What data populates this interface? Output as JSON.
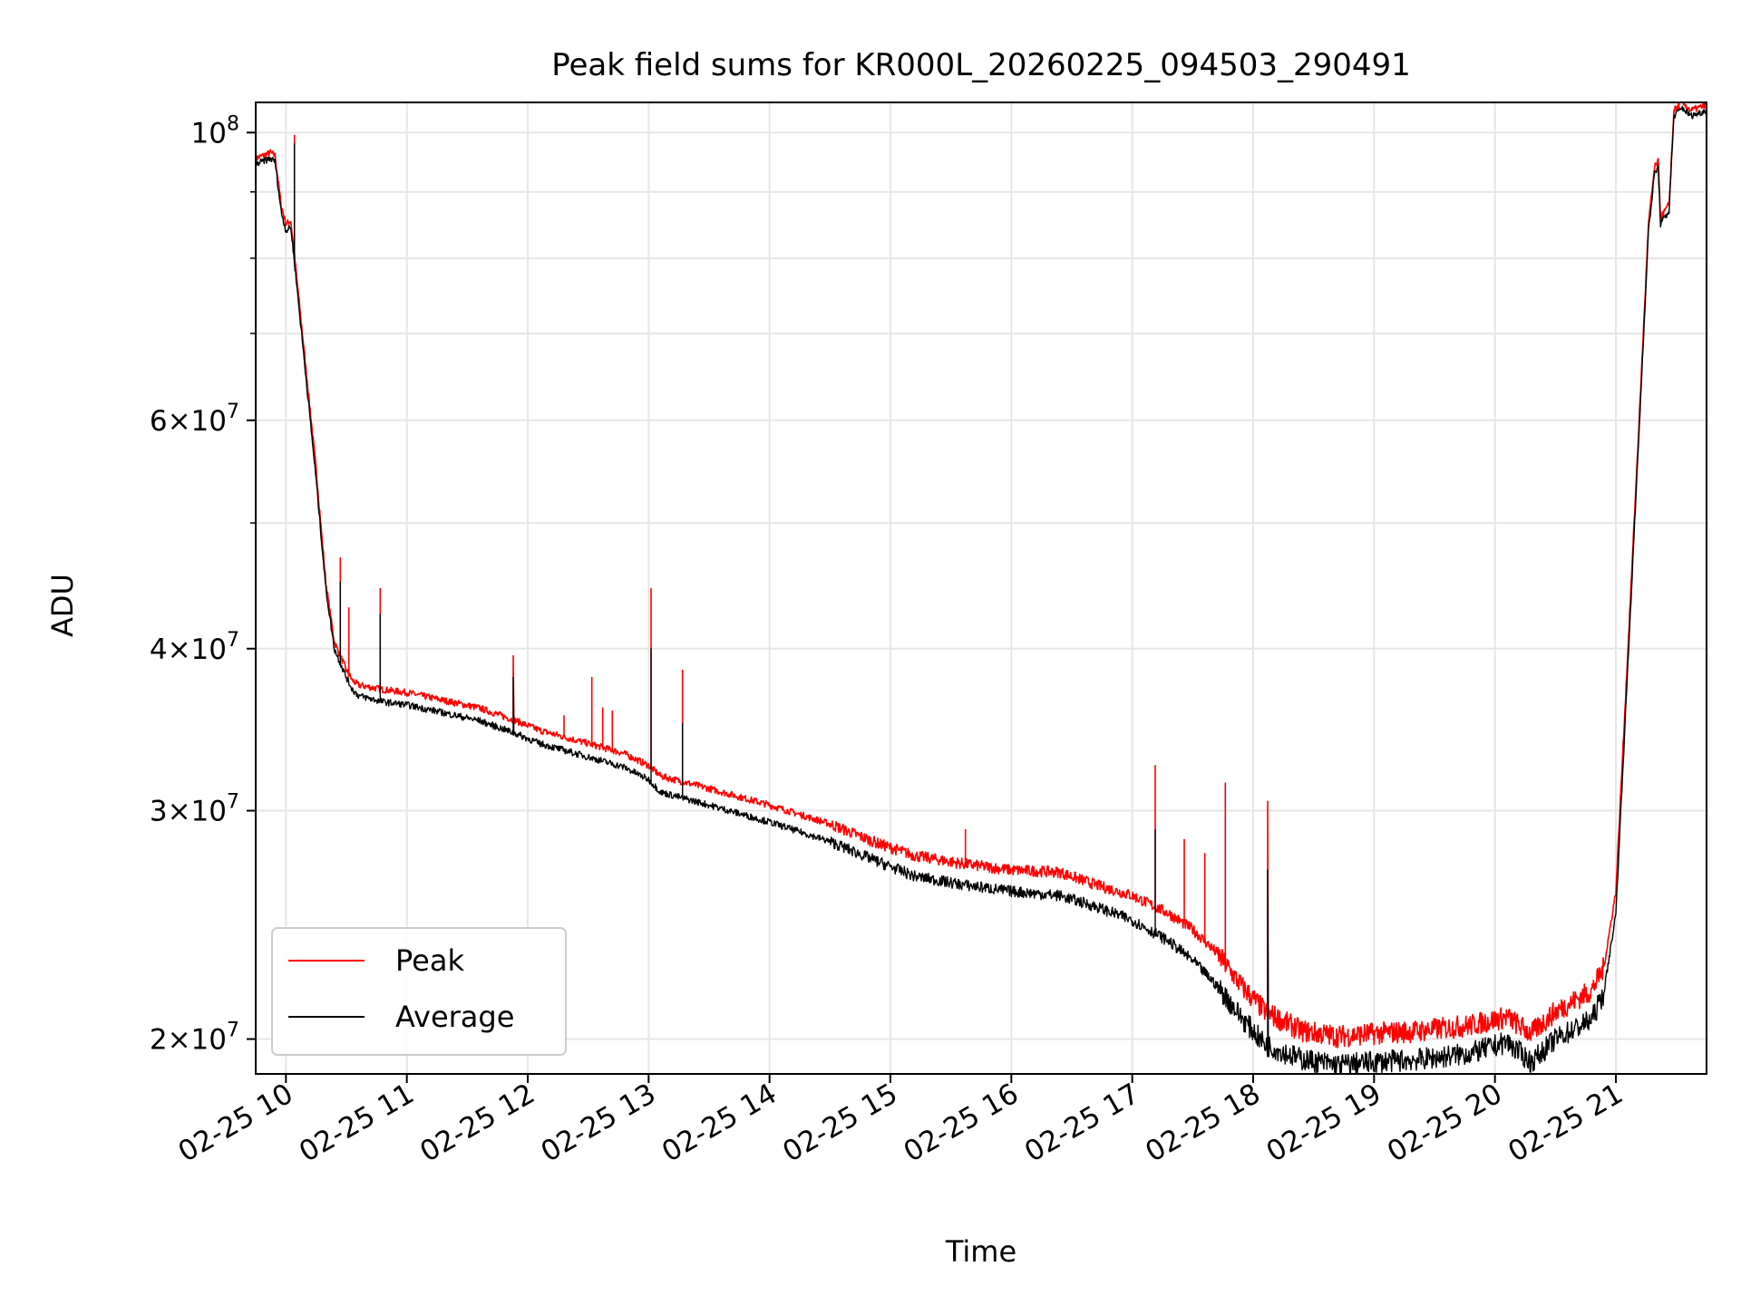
{
  "chart_data": {
    "type": "line",
    "title": "Peak field sums for KR000L_20260225_094503_290491",
    "xlabel": "Time",
    "ylabel": "ADU",
    "yscale": "log",
    "xlim_hours": [
      9.75,
      21.75
    ],
    "ylim": [
      18800000,
      105500000
    ],
    "grid": true,
    "legend_position": "lower-left",
    "x_ticks": [
      {
        "hour": 10,
        "label": "02-25 10"
      },
      {
        "hour": 11,
        "label": "02-25 11"
      },
      {
        "hour": 12,
        "label": "02-25 12"
      },
      {
        "hour": 13,
        "label": "02-25 13"
      },
      {
        "hour": 14,
        "label": "02-25 14"
      },
      {
        "hour": 15,
        "label": "02-25 15"
      },
      {
        "hour": 16,
        "label": "02-25 16"
      },
      {
        "hour": 17,
        "label": "02-25 17"
      },
      {
        "hour": 18,
        "label": "02-25 18"
      },
      {
        "hour": 19,
        "label": "02-25 19"
      },
      {
        "hour": 20,
        "label": "02-25 20"
      },
      {
        "hour": 21,
        "label": "02-25 21"
      }
    ],
    "y_ticks_major": [
      {
        "value": 100000000,
        "base": "10",
        "exp": "8"
      },
      {
        "value": 60000000,
        "mant": "6",
        "base": "10",
        "exp": "7"
      },
      {
        "value": 40000000,
        "mant": "4",
        "base": "10",
        "exp": "7"
      },
      {
        "value": 30000000,
        "mant": "3",
        "base": "10",
        "exp": "7"
      },
      {
        "value": 20000000,
        "mant": "2",
        "base": "10",
        "exp": "7"
      }
    ],
    "y_ticks_minor": [
      50000000,
      70000000,
      80000000,
      90000000
    ],
    "series": [
      {
        "name": "Peak",
        "color": "#ff0000",
        "points": [
          [
            9.75,
            95500000
          ],
          [
            9.87,
            96500000
          ],
          [
            9.91,
            96000000
          ],
          [
            9.96,
            88000000
          ],
          [
            10.0,
            85000000
          ],
          [
            10.04,
            85500000
          ],
          [
            10.07,
            80500000
          ],
          [
            10.15,
            68000000
          ],
          [
            10.25,
            55000000
          ],
          [
            10.33,
            45000000
          ],
          [
            10.4,
            40500000
          ],
          [
            10.5,
            38500000
          ],
          [
            10.55,
            37800000
          ],
          [
            10.6,
            37500000
          ],
          [
            10.8,
            37200000
          ],
          [
            11.0,
            37000000
          ],
          [
            11.3,
            36500000
          ],
          [
            11.6,
            36000000
          ],
          [
            11.9,
            35200000
          ],
          [
            12.1,
            34600000
          ],
          [
            12.5,
            33800000
          ],
          [
            12.8,
            33200000
          ],
          [
            13.0,
            32500000
          ],
          [
            13.1,
            31900000
          ],
          [
            13.5,
            31200000
          ],
          [
            14.0,
            30300000
          ],
          [
            14.5,
            29300000
          ],
          [
            14.9,
            28300000
          ],
          [
            15.2,
            27700000
          ],
          [
            15.6,
            27300000
          ],
          [
            16.0,
            27000000
          ],
          [
            16.4,
            26900000
          ],
          [
            16.7,
            26300000
          ],
          [
            17.0,
            25800000
          ],
          [
            17.3,
            25000000
          ],
          [
            17.5,
            24300000
          ],
          [
            17.7,
            23300000
          ],
          [
            17.9,
            22000000
          ],
          [
            18.1,
            21000000
          ],
          [
            18.4,
            20300000
          ],
          [
            18.7,
            20100000
          ],
          [
            19.0,
            20200000
          ],
          [
            19.4,
            20300000
          ],
          [
            19.8,
            20500000
          ],
          [
            20.1,
            20800000
          ],
          [
            20.3,
            20200000
          ],
          [
            20.5,
            21000000
          ],
          [
            20.8,
            21800000
          ],
          [
            20.9,
            22700000
          ],
          [
            21.0,
            26000000
          ],
          [
            21.1,
            40000000
          ],
          [
            21.2,
            62000000
          ],
          [
            21.27,
            85000000
          ],
          [
            21.32,
            94000000
          ],
          [
            21.35,
            95000000
          ],
          [
            21.37,
            86000000
          ],
          [
            21.44,
            88000000
          ],
          [
            21.48,
            104000000
          ],
          [
            21.55,
            105500000
          ],
          [
            21.62,
            104000000
          ],
          [
            21.75,
            105000000
          ]
        ],
        "spikes": [
          [
            10.07,
            99500000
          ],
          [
            10.45,
            47000000
          ],
          [
            10.52,
            43000000
          ],
          [
            10.78,
            44500000
          ],
          [
            11.88,
            39500000
          ],
          [
            12.3,
            35500000
          ],
          [
            12.53,
            38000000
          ],
          [
            12.62,
            36000000
          ],
          [
            12.7,
            35800000
          ],
          [
            13.02,
            44500000
          ],
          [
            13.28,
            38500000
          ],
          [
            15.62,
            29000000
          ],
          [
            17.19,
            32500000
          ],
          [
            17.43,
            28500000
          ],
          [
            17.6,
            27800000
          ],
          [
            17.77,
            31500000
          ],
          [
            18.12,
            30500000
          ]
        ]
      },
      {
        "name": "Average",
        "color": "#000000",
        "points": [
          [
            9.75,
            94500000
          ],
          [
            9.87,
            95500000
          ],
          [
            9.91,
            95000000
          ],
          [
            9.96,
            87000000
          ],
          [
            10.0,
            84000000
          ],
          [
            10.04,
            84500000
          ],
          [
            10.07,
            79500000
          ],
          [
            10.15,
            67000000
          ],
          [
            10.25,
            54000000
          ],
          [
            10.33,
            44500000
          ],
          [
            10.4,
            40000000
          ],
          [
            10.5,
            38000000
          ],
          [
            10.55,
            37200000
          ],
          [
            10.6,
            36800000
          ],
          [
            10.8,
            36400000
          ],
          [
            11.0,
            36200000
          ],
          [
            11.3,
            35700000
          ],
          [
            11.6,
            35200000
          ],
          [
            11.9,
            34400000
          ],
          [
            12.1,
            33800000
          ],
          [
            12.5,
            33000000
          ],
          [
            12.8,
            32400000
          ],
          [
            13.0,
            31700000
          ],
          [
            13.1,
            31000000
          ],
          [
            13.5,
            30300000
          ],
          [
            14.0,
            29400000
          ],
          [
            14.5,
            28400000
          ],
          [
            14.9,
            27400000
          ],
          [
            15.2,
            26700000
          ],
          [
            15.6,
            26300000
          ],
          [
            16.0,
            26000000
          ],
          [
            16.4,
            25800000
          ],
          [
            16.7,
            25300000
          ],
          [
            17.0,
            24700000
          ],
          [
            17.3,
            23800000
          ],
          [
            17.5,
            23000000
          ],
          [
            17.7,
            22000000
          ],
          [
            17.9,
            20800000
          ],
          [
            18.1,
            19800000
          ],
          [
            18.4,
            19300000
          ],
          [
            18.7,
            19100000
          ],
          [
            19.0,
            19200000
          ],
          [
            19.4,
            19300000
          ],
          [
            19.8,
            19500000
          ],
          [
            20.1,
            19900000
          ],
          [
            20.3,
            19200000
          ],
          [
            20.5,
            20000000
          ],
          [
            20.8,
            20700000
          ],
          [
            20.9,
            21700000
          ],
          [
            21.0,
            25000000
          ],
          [
            21.1,
            39000000
          ],
          [
            21.2,
            61000000
          ],
          [
            21.27,
            84000000
          ],
          [
            21.32,
            93000000
          ],
          [
            21.35,
            94000000
          ],
          [
            21.37,
            85000000
          ],
          [
            21.44,
            87000000
          ],
          [
            21.48,
            103000000
          ],
          [
            21.55,
            104500000
          ],
          [
            21.62,
            103000000
          ],
          [
            21.75,
            104000000
          ]
        ],
        "spikes": [
          [
            10.07,
            98000000
          ],
          [
            10.45,
            45000000
          ],
          [
            10.78,
            42500000
          ],
          [
            11.88,
            38000000
          ],
          [
            13.02,
            40000000
          ],
          [
            13.28,
            35000000
          ],
          [
            17.19,
            29000000
          ],
          [
            18.12,
            27000000
          ]
        ]
      }
    ]
  }
}
